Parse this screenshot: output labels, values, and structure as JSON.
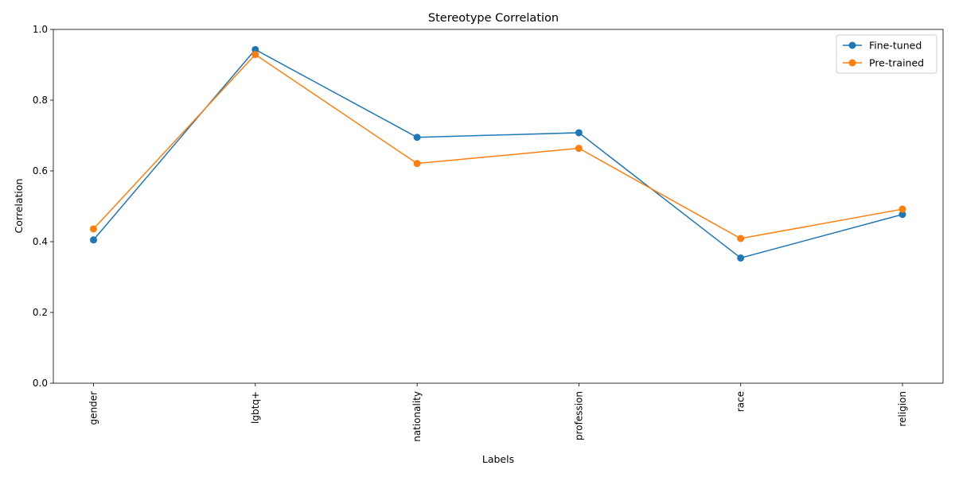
{
  "chart_data": {
    "type": "line",
    "title": "Stereotype Correlation",
    "xlabel": "Labels",
    "ylabel": "Correlation",
    "categories": [
      "gender",
      "lgbtq+",
      "nationality",
      "profession",
      "race",
      "religion"
    ],
    "ylim": [
      0,
      1
    ],
    "yticks": [
      "0.0",
      "0.2",
      "0.4",
      "0.6",
      "0.8",
      "1.0"
    ],
    "series": [
      {
        "name": "Fine-tuned",
        "color": "#1f77b4",
        "values": [
          0.405,
          0.943,
          0.695,
          0.708,
          0.354,
          0.477
        ]
      },
      {
        "name": "Pre-trained",
        "color": "#ff7f0e",
        "values": [
          0.436,
          0.929,
          0.621,
          0.664,
          0.409,
          0.492
        ]
      }
    ],
    "legend_position": "top-right",
    "grid": false,
    "x_tick_rotation": "vertical"
  }
}
